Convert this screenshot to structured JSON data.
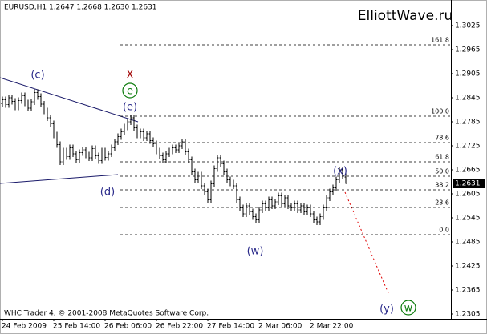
{
  "chart_data": {
    "type": "ohlc",
    "header": "EURUSD,H1  1.2647 1.2668 1.2630 1.2631",
    "watermark": "ElliottWave.ru",
    "footer": "WHC Trader 4, © 2001-2008 MetaQuotes Software Corp.",
    "color": "#000000",
    "categories": [
      "24 Feb 2009",
      null,
      null,
      null,
      null,
      null,
      null,
      null,
      null,
      null,
      null,
      null,
      null,
      null,
      null,
      null,
      "25 Feb 14:00",
      null,
      null,
      null,
      null,
      null,
      null,
      null,
      null,
      null,
      null,
      null,
      null,
      null,
      null,
      null,
      "26 Feb 06:00",
      null,
      null,
      null,
      null,
      null,
      null,
      null,
      null,
      null,
      null,
      null,
      null,
      null,
      null,
      null,
      "26 Feb 22:00",
      null,
      null,
      null,
      null,
      null,
      null,
      null,
      null,
      null,
      null,
      null,
      null,
      null,
      null,
      null,
      "27 Feb 14:00",
      null,
      null,
      null,
      null,
      null,
      null,
      null,
      null,
      null,
      null,
      null,
      null,
      null,
      null,
      null,
      "2 Mar 06:00",
      null,
      null,
      null,
      null,
      null,
      null,
      null,
      null,
      null,
      null,
      null,
      null,
      null,
      null,
      null,
      "2 Mar 22:00",
      null,
      null,
      null,
      null,
      null,
      null,
      null,
      null,
      null,
      null,
      null
    ],
    "open": [
      1.283,
      1.284,
      1.2828,
      1.2845,
      1.2836,
      1.2822,
      1.2838,
      1.285,
      1.2832,
      1.2819,
      1.2835,
      1.2858,
      1.2848,
      1.2829,
      1.2812,
      1.2795,
      1.278,
      1.2752,
      1.2728,
      1.2685,
      1.2712,
      1.2698,
      1.272,
      1.2705,
      1.269,
      1.2708,
      1.2715,
      1.2702,
      1.2695,
      1.2718,
      1.27,
      1.2688,
      1.2712,
      1.2696,
      1.2705,
      1.272,
      1.2735,
      1.2748,
      1.276,
      1.2772,
      1.2785,
      1.2795,
      1.277,
      1.2752,
      1.276,
      1.2745,
      1.2755,
      1.2738,
      1.273,
      1.2712,
      1.27,
      1.269,
      1.2705,
      1.2712,
      1.272,
      1.2715,
      1.2725,
      1.2735,
      1.271,
      1.269,
      1.266,
      1.264,
      1.2652,
      1.2625,
      1.261,
      1.259,
      1.263,
      1.2668,
      1.2695,
      1.268,
      1.266,
      1.264,
      1.2632,
      1.2625,
      1.259,
      1.257,
      1.2555,
      1.2575,
      1.256,
      1.2548,
      1.254,
      1.2565,
      1.258,
      1.257,
      1.259,
      1.2575,
      1.2585,
      1.26,
      1.258,
      1.2595,
      1.2575,
      1.257,
      1.258,
      1.2565,
      1.2575,
      1.256,
      1.257,
      1.2555,
      1.254,
      1.2535,
      1.2548,
      1.257,
      1.2595,
      1.261,
      1.262,
      1.264,
      1.2665,
      1.2647
    ],
    "high": [
      1.2848,
      1.2848,
      1.2853,
      1.2853,
      1.2844,
      1.2846,
      1.2858,
      1.2858,
      1.284,
      1.2843,
      1.2866,
      1.2866,
      1.2856,
      1.2837,
      1.282,
      1.2803,
      1.2788,
      1.276,
      1.2736,
      1.272,
      1.272,
      1.2728,
      1.2728,
      1.2713,
      1.2716,
      1.2723,
      1.2723,
      1.271,
      1.2726,
      1.2726,
      1.2708,
      1.272,
      1.272,
      1.2713,
      1.2728,
      1.2743,
      1.2756,
      1.2768,
      1.278,
      1.2793,
      1.2803,
      1.2803,
      1.2778,
      1.2768,
      1.2768,
      1.2763,
      1.2763,
      1.2746,
      1.2738,
      1.272,
      1.2708,
      1.2713,
      1.272,
      1.2728,
      1.2728,
      1.2733,
      1.2743,
      1.2743,
      1.2718,
      1.2698,
      1.2668,
      1.266,
      1.266,
      1.2633,
      1.2618,
      1.2638,
      1.2676,
      1.2703,
      1.2703,
      1.2688,
      1.2668,
      1.2648,
      1.264,
      1.2633,
      1.2598,
      1.2578,
      1.2583,
      1.2583,
      1.2568,
      1.2556,
      1.2573,
      1.2588,
      1.2588,
      1.2598,
      1.2598,
      1.2593,
      1.2608,
      1.2608,
      1.2603,
      1.2603,
      1.2583,
      1.2588,
      1.2588,
      1.2583,
      1.2583,
      1.2578,
      1.2578,
      1.2563,
      1.2548,
      1.2556,
      1.2578,
      1.2603,
      1.2618,
      1.2628,
      1.2648,
      1.2673,
      1.2673,
      1.2668
    ],
    "low": [
      1.2822,
      1.282,
      1.282,
      1.2828,
      1.2814,
      1.2814,
      1.283,
      1.2824,
      1.2811,
      1.2811,
      1.2827,
      1.284,
      1.2821,
      1.2804,
      1.2787,
      1.2772,
      1.2744,
      1.272,
      1.2677,
      1.2677,
      1.269,
      1.269,
      1.2697,
      1.2682,
      1.2682,
      1.27,
      1.2694,
      1.2687,
      1.2687,
      1.2692,
      1.268,
      1.268,
      1.2688,
      1.2688,
      1.2697,
      1.2712,
      1.2727,
      1.274,
      1.2752,
      1.2764,
      1.2777,
      1.2762,
      1.2744,
      1.2744,
      1.2737,
      1.2737,
      1.273,
      1.2722,
      1.2704,
      1.2692,
      1.2682,
      1.2682,
      1.2697,
      1.2704,
      1.2707,
      1.2707,
      1.2717,
      1.2702,
      1.2682,
      1.2652,
      1.2632,
      1.2632,
      1.2617,
      1.2602,
      1.2582,
      1.2582,
      1.2622,
      1.266,
      1.2672,
      1.2652,
      1.2632,
      1.2624,
      1.2617,
      1.2582,
      1.2562,
      1.2547,
      1.2547,
      1.2552,
      1.254,
      1.2532,
      1.2532,
      1.2557,
      1.2562,
      1.2562,
      1.2567,
      1.2567,
      1.2577,
      1.2572,
      1.2572,
      1.2567,
      1.2562,
      1.2562,
      1.2557,
      1.2557,
      1.2552,
      1.2552,
      1.2547,
      1.2532,
      1.2527,
      1.2527,
      1.254,
      1.2562,
      1.2587,
      1.2602,
      1.2612,
      1.2632,
      1.2642,
      1.263
    ],
    "close": [
      1.284,
      1.2828,
      1.2845,
      1.2836,
      1.2822,
      1.2838,
      1.285,
      1.2832,
      1.2819,
      1.2835,
      1.2858,
      1.2848,
      1.2829,
      1.2812,
      1.2795,
      1.278,
      1.2752,
      1.2728,
      1.2685,
      1.2712,
      1.2698,
      1.272,
      1.2705,
      1.269,
      1.2708,
      1.2715,
      1.2702,
      1.2695,
      1.2718,
      1.27,
      1.2688,
      1.2712,
      1.2696,
      1.2705,
      1.272,
      1.2735,
      1.2748,
      1.276,
      1.2772,
      1.2785,
      1.2795,
      1.277,
      1.2752,
      1.276,
      1.2745,
      1.2755,
      1.2738,
      1.273,
      1.2712,
      1.27,
      1.269,
      1.2705,
      1.2712,
      1.272,
      1.2715,
      1.2725,
      1.2735,
      1.271,
      1.269,
      1.266,
      1.264,
      1.2652,
      1.2625,
      1.261,
      1.259,
      1.263,
      1.2668,
      1.2695,
      1.268,
      1.266,
      1.264,
      1.2632,
      1.2625,
      1.259,
      1.257,
      1.2555,
      1.2575,
      1.256,
      1.2548,
      1.254,
      1.2565,
      1.258,
      1.257,
      1.259,
      1.2575,
      1.2585,
      1.26,
      1.258,
      1.2595,
      1.2575,
      1.257,
      1.258,
      1.2565,
      1.2575,
      1.256,
      1.257,
      1.2555,
      1.254,
      1.2535,
      1.2548,
      1.257,
      1.2595,
      1.261,
      1.262,
      1.264,
      1.2665,
      1.265,
      1.2631
    ],
    "ylim": [
      1.2293,
      1.3089
    ],
    "yticks": [
      1.3025,
      1.2965,
      1.2905,
      1.2845,
      1.2785,
      1.2725,
      1.2665,
      1.2605,
      1.2545,
      1.2485,
      1.2425,
      1.2365,
      1.2305
    ],
    "last_price": 1.2631,
    "fib_levels": [
      {
        "label": "161.8",
        "price": 1.2977
      },
      {
        "label": "100.0",
        "price": 1.2799
      },
      {
        "label": "78.6",
        "price": 1.2733
      },
      {
        "label": "61.8",
        "price": 1.2685
      },
      {
        "label": "50.0",
        "price": 1.2649
      },
      {
        "label": "38.2",
        "price": 1.2615
      },
      {
        "label": "23.6",
        "price": 1.2571
      },
      {
        "label": "0.0",
        "price": 1.2503
      }
    ],
    "annotations": [
      {
        "text": "(c)",
        "color": "#2a2a8a"
      },
      {
        "text": "X",
        "color": "#a00000"
      },
      {
        "text": "e",
        "color": "#0a7a0a"
      },
      {
        "text": "(e)",
        "color": "#2a2a8a"
      },
      {
        "text": "(d)",
        "color": "#2a2a8a"
      },
      {
        "text": "(x)",
        "color": "#2a2a8a"
      },
      {
        "text": "(w)",
        "color": "#2a2a8a"
      },
      {
        "text": "(y)",
        "color": "#2a2a8a"
      },
      {
        "text": "w",
        "color": "#0a7a0a"
      }
    ]
  }
}
